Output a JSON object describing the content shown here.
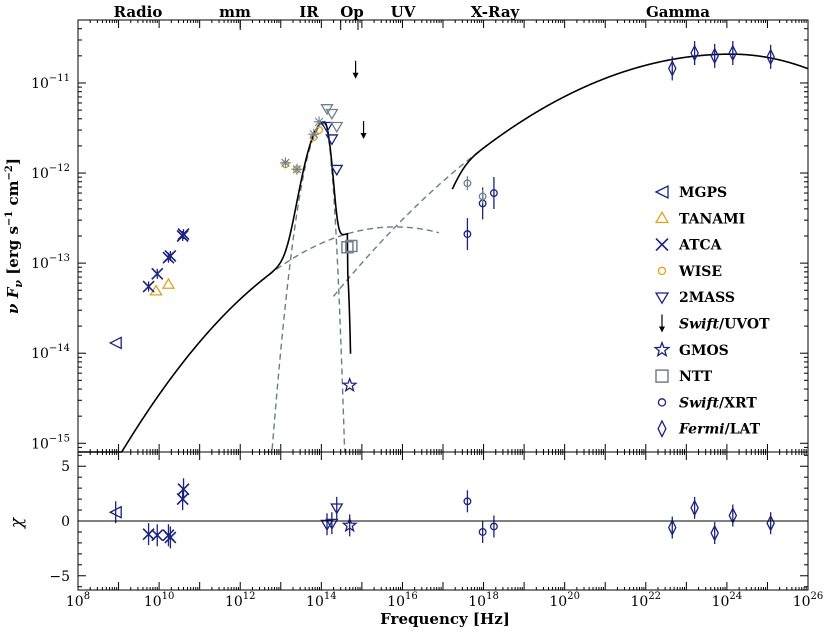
{
  "chart_data": {
    "type": "scatter",
    "xlabel": "Frequency [Hz]",
    "xscale": "log",
    "xlim": [
      100000000.0,
      1e+26
    ],
    "bands": [
      "Radio",
      "mm",
      "IR",
      "Op",
      "UV",
      "X-Ray",
      "Gamma"
    ],
    "xticks": [
      {
        "base": "10",
        "exp": "8"
      },
      {
        "base": "10",
        "exp": "10"
      },
      {
        "base": "10",
        "exp": "12"
      },
      {
        "base": "10",
        "exp": "14"
      },
      {
        "base": "10",
        "exp": "16"
      },
      {
        "base": "10",
        "exp": "18"
      },
      {
        "base": "10",
        "exp": "20"
      },
      {
        "base": "10",
        "exp": "22"
      },
      {
        "base": "10",
        "exp": "24"
      },
      {
        "base": "10",
        "exp": "26"
      }
    ],
    "panels": [
      {
        "name": "sed",
        "ylabel_parts": [
          "ν F",
          "ν",
          " [erg s",
          "−1",
          " cm",
          "−2",
          "]"
        ],
        "yscale": "log",
        "ylim": [
          8e-16,
          5e-11
        ],
        "yticks": [
          {
            "base": "10",
            "exp": "−15",
            "value": 1e-15
          },
          {
            "base": "10",
            "exp": "−14",
            "value": 1e-14
          },
          {
            "base": "10",
            "exp": "−13",
            "value": 1e-13
          },
          {
            "base": "10",
            "exp": "−12",
            "value": 1e-12
          },
          {
            "base": "10",
            "exp": "−11",
            "value": 1e-11
          }
        ]
      },
      {
        "name": "residuals",
        "ylabel": "χ",
        "yscale": "linear",
        "ylim": [
          -6.3,
          6.3
        ],
        "yticks": [
          {
            "label": "5",
            "value": 5
          },
          {
            "label": "0",
            "value": 0
          },
          {
            "label": "−5",
            "value": -5
          }
        ]
      }
    ],
    "legend": {
      "placement": "right",
      "entries": [
        {
          "label": "MGPS",
          "italic_prefix": "",
          "marker": "tri-left",
          "color": "#1a237e"
        },
        {
          "label": "TANAMI",
          "italic_prefix": "",
          "marker": "tri-up",
          "color": "#e6a01a"
        },
        {
          "label": "ATCA",
          "italic_prefix": "",
          "marker": "x",
          "color": "#1a237e"
        },
        {
          "label": "WISE",
          "italic_prefix": "",
          "marker": "circle",
          "color": "#e6a01a"
        },
        {
          "label": "2MASS",
          "italic_prefix": "",
          "marker": "tri-down",
          "color": "#1a237e"
        },
        {
          "label": "/UVOT",
          "italic_prefix": "Swift",
          "marker": "arrow",
          "color": "#000000"
        },
        {
          "label": "GMOS",
          "italic_prefix": "",
          "marker": "star",
          "color": "#1a237e"
        },
        {
          "label": "NTT",
          "italic_prefix": "",
          "marker": "square",
          "color": "#708090"
        },
        {
          "label": "/XRT",
          "italic_prefix": "Swift",
          "marker": "circle",
          "color": "#1a237e"
        },
        {
          "label": "/LAT",
          "italic_prefix": "Fermi",
          "marker": "diamond",
          "color": "#1a237e"
        }
      ]
    },
    "series": [
      {
        "name": "MGPS",
        "marker": "tri-left",
        "color": "#1a237e",
        "points": [
          {
            "x": 850000000.0,
            "y": 1.3e-14,
            "res": 0.8
          }
        ]
      },
      {
        "name": "TANAMI",
        "marker": "tri-up",
        "color": "#e6a01a",
        "points": [
          {
            "x": 8400000000.0,
            "y": 4.9e-14
          },
          {
            "x": 17000000000.0,
            "y": 5.8e-14
          }
        ]
      },
      {
        "name": "ATCA",
        "marker": "x",
        "color": "#1a237e",
        "points": [
          {
            "x": 5500000000.0,
            "y": 5.5e-14,
            "res": -1.2
          },
          {
            "x": 9000000000.0,
            "y": 7.6e-14,
            "res": -1.3
          },
          {
            "x": 17000000000.0,
            "y": 1.15e-13,
            "res": -1.3
          },
          {
            "x": 19000000000.0,
            "y": 1.2e-13,
            "res": -1.5
          },
          {
            "x": 38000000000.0,
            "y": 2e-13,
            "res": 2.0
          },
          {
            "x": 40000000000.0,
            "y": 2.1e-13,
            "res": 2.9
          }
        ]
      },
      {
        "name": "WISE",
        "marker": "circle",
        "color": "#e6a01a",
        "points": [
          {
            "x": 13000000000000.0,
            "y": 1.25e-12
          },
          {
            "x": 25000000000000.0,
            "y": 1.1e-12
          },
          {
            "x": 65000000000000.0,
            "y": 2.5e-12
          },
          {
            "x": 88000000000000.0,
            "y": 3e-12
          }
        ]
      },
      {
        "name": "WISE (model)",
        "marker": "asterisk",
        "color": "#708090",
        "points": [
          {
            "x": 13000000000000.0,
            "y": 1.3e-12
          },
          {
            "x": 25000000000000.0,
            "y": 1.1e-12
          },
          {
            "x": 65000000000000.0,
            "y": 2.7e-12
          },
          {
            "x": 88000000000000.0,
            "y": 3.7e-12
          }
        ]
      },
      {
        "name": "2MASS",
        "marker": "tri-down",
        "color": "#1a237e",
        "points": [
          {
            "x": 138000000000000.0,
            "y": 3.3e-12,
            "res": -0.3
          },
          {
            "x": 182000000000000.0,
            "y": 2.4e-12,
            "res": -0.2
          },
          {
            "x": 240000000000000.0,
            "y": 1.1e-12,
            "res": 1.2
          }
        ]
      },
      {
        "name": "2MASS (model)",
        "marker": "tri-down",
        "color": "#708090",
        "points": [
          {
            "x": 138000000000000.0,
            "y": 5.2e-12
          },
          {
            "x": 182000000000000.0,
            "y": 4.6e-12
          },
          {
            "x": 240000000000000.0,
            "y": 3.3e-12
          }
        ]
      },
      {
        "name": "Swift/UVOT",
        "marker": "arrow",
        "color": "#000000",
        "points": [
          {
            "x": 700000000000000.0,
            "y": 1.4e-11
          },
          {
            "x": 1100000000000000.0,
            "y": 3e-12
          }
        ]
      },
      {
        "name": "GMOS",
        "marker": "star",
        "color": "#1a237e",
        "points": [
          {
            "x": 500000000000000.0,
            "y": 4.4e-15,
            "res": -0.4
          }
        ]
      },
      {
        "name": "NTT",
        "marker": "square",
        "color": "#708090",
        "points": [
          {
            "x": 440000000000000.0,
            "y": 1.5e-13
          },
          {
            "x": 550000000000000.0,
            "y": 1.55e-13
          }
        ]
      },
      {
        "name": "Swift/XRT",
        "marker": "circle",
        "color": "#1a237e",
        "points": [
          {
            "x": 4e+17,
            "y": 2.1e-13,
            "res": 1.8
          },
          {
            "x": 9.5e+17,
            "y": 4.6e-13,
            "res": -1.0
          },
          {
            "x": 1.8e+18,
            "y": 6e-13,
            "res": -0.5
          }
        ]
      },
      {
        "name": "Swift/XRT (unabsorbed)",
        "marker": "circle",
        "color": "#708090",
        "points": [
          {
            "x": 4e+17,
            "y": 7.7e-13
          },
          {
            "x": 9.5e+17,
            "y": 5.5e-13
          }
        ]
      },
      {
        "name": "Fermi/LAT",
        "marker": "diamond",
        "color": "#1a237e",
        "points": [
          {
            "x": 4.5e+22,
            "y": 1.45e-11,
            "res": -0.6
          },
          {
            "x": 1.6e+23,
            "y": 2.15e-11,
            "res": 1.2
          },
          {
            "x": 5e+23,
            "y": 2e-11,
            "res": -1.1
          },
          {
            "x": 1.4e+24,
            "y": 2.15e-11,
            "res": 0.5
          },
          {
            "x": 1.2e+25,
            "y": 1.95e-11,
            "res": -0.2
          }
        ]
      }
    ],
    "model_curves": [
      {
        "name": "total",
        "style": "solid",
        "color": "#000000"
      },
      {
        "name": "synchrotron",
        "style": "dashed",
        "color": "#6b7b8c"
      },
      {
        "name": "host galaxy",
        "style": "dashed",
        "color": "#6b7b8c"
      },
      {
        "name": "inverse Compton",
        "style": "dashed",
        "color": "#6b7b8c"
      }
    ]
  }
}
